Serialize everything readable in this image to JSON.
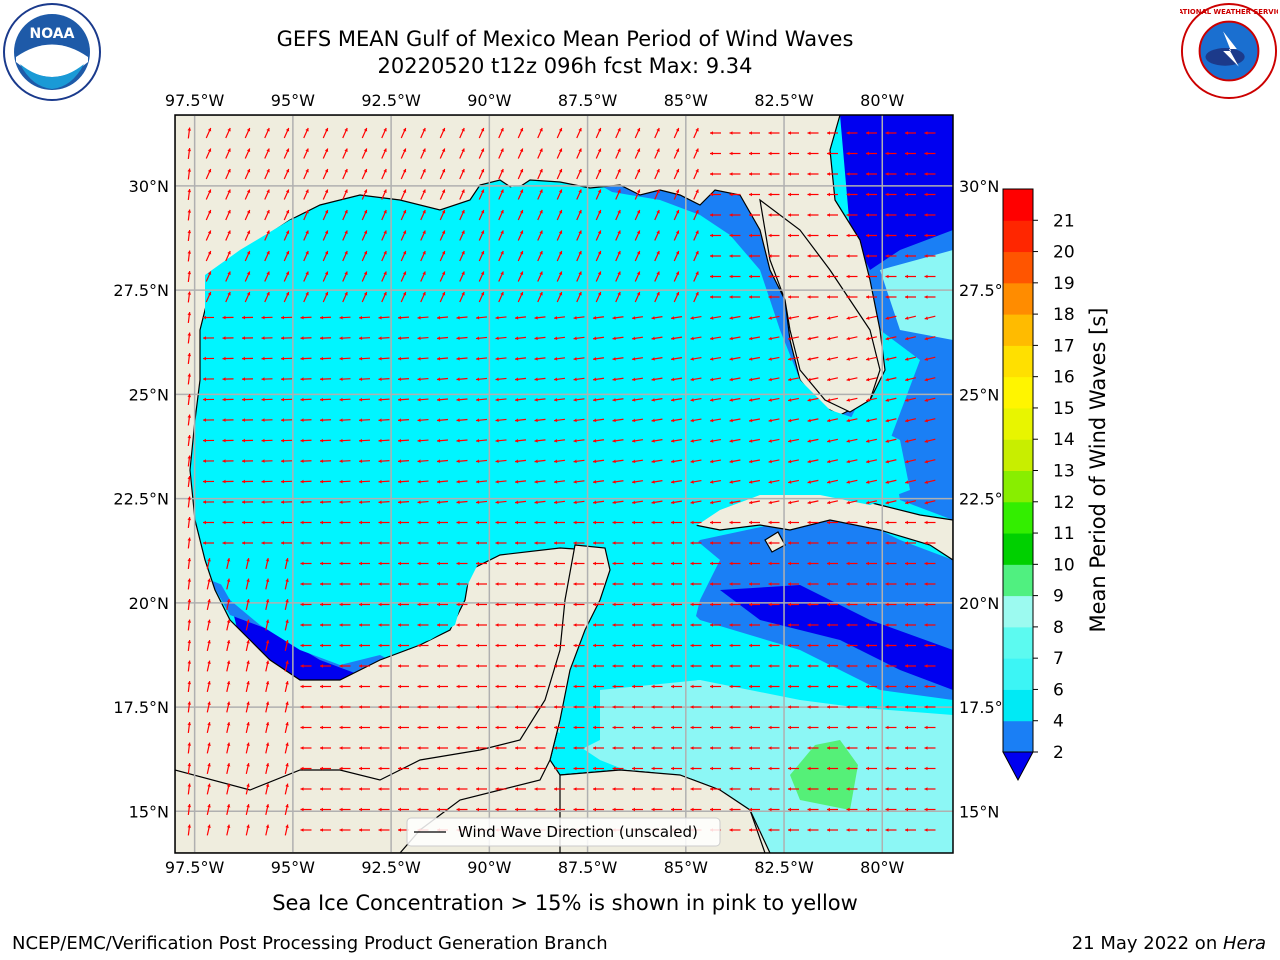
{
  "title": {
    "line1": "GEFS MEAN Gulf of Mexico Mean Period of Wind Waves",
    "line2": "20220520 t12z 096h fcst   Max: 9.34"
  },
  "axes": {
    "lon_ticks": [
      "97.5°W",
      "95°W",
      "92.5°W",
      "90°W",
      "87.5°W",
      "85°W",
      "82.5°W",
      "80°W"
    ],
    "lat_ticks": [
      "30°N",
      "27.5°N",
      "25°N",
      "22.5°N",
      "20°N",
      "17.5°N",
      "15°N"
    ],
    "lon_range": [
      -98,
      -78.2
    ],
    "lat_range": [
      14,
      31.7
    ]
  },
  "legend": {
    "label": "Wind Wave Direction (unscaled)"
  },
  "colorbar": {
    "label": "Mean Period of Wind Waves [s]",
    "ticks": [
      "2",
      "4",
      "6",
      "7",
      "8",
      "9",
      "10",
      "11",
      "12",
      "13",
      "14",
      "15",
      "16",
      "17",
      "18",
      "19",
      "20",
      "21"
    ],
    "colors": [
      "#1a7ff5",
      "#00eaf5",
      "#3cf5f5",
      "#5cfaf0",
      "#9cfaf0",
      "#50f080",
      "#00d000",
      "#33ee00",
      "#88ee00",
      "#c8ee00",
      "#e8f500",
      "#fff500",
      "#ffe000",
      "#ffbb00",
      "#ff8c00",
      "#ff5500",
      "#ff2600",
      "#ff0000"
    ],
    "under_color": "#0000f0"
  },
  "colors": {
    "land": "#efedde",
    "water_main": "#00f5ff",
    "water_light": "#8cf7f5",
    "water_mid": "#1a7ff5",
    "water_deep": "#0000f0",
    "green_patch": "#55f078",
    "arrows": "#ff0000",
    "grid": "#b0b0b0"
  },
  "caption": "Sea Ice Concentration > 15% is shown in pink to yellow",
  "footer": {
    "left": "NCEP/EMC/Verification Post Processing Product Generation Branch",
    "right_prefix": "21 May 2022 on ",
    "right_host": "Hera"
  },
  "logos": {
    "noaa_text": "NOAA",
    "nws_text": "NATIONAL WEATHER SERVICE"
  }
}
